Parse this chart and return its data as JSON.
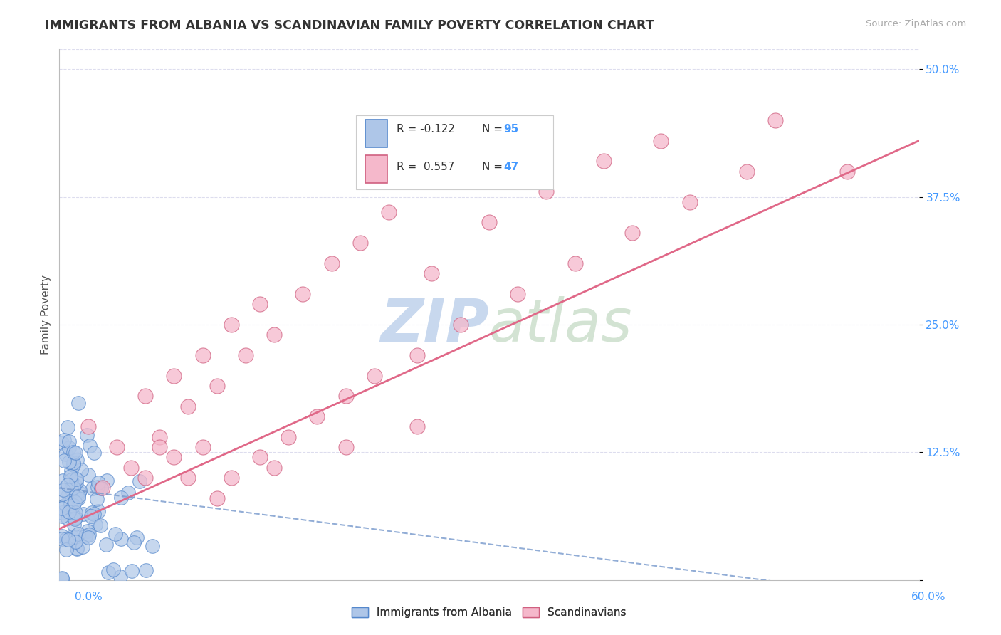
{
  "title": "IMMIGRANTS FROM ALBANIA VS SCANDINAVIAN FAMILY POVERTY CORRELATION CHART",
  "source": "Source: ZipAtlas.com",
  "ylabel": "Family Poverty",
  "legend_bottom1": "Immigrants from Albania",
  "legend_bottom2": "Scandinavians",
  "r_albania": -0.122,
  "n_albania": 95,
  "r_scandinavian": 0.557,
  "n_scandinavian": 47,
  "blue_color": "#aec6e8",
  "blue_edge": "#5588cc",
  "pink_color": "#f5b8cb",
  "pink_edge": "#d06080",
  "blue_line_color": "#7799cc",
  "pink_line_color": "#e06888",
  "title_color": "#333333",
  "source_color": "#aaaaaa",
  "axis_label_color": "#4499ff",
  "watermark_color": "#c8d8ee",
  "background_color": "#ffffff",
  "grid_color": "#ddddee",
  "xmin": 0.0,
  "xmax": 0.6,
  "ymin": 0.0,
  "ymax": 0.52,
  "yticks": [
    0.0,
    0.125,
    0.25,
    0.375,
    0.5
  ],
  "ytick_labels": [
    "",
    "12.5%",
    "25.0%",
    "37.5%",
    "50.0%"
  ],
  "scand_x": [
    0.02,
    0.04,
    0.06,
    0.07,
    0.08,
    0.09,
    0.1,
    0.11,
    0.12,
    0.13,
    0.14,
    0.15,
    0.17,
    0.19,
    0.21,
    0.23,
    0.26,
    0.3,
    0.34,
    0.38,
    0.42,
    0.5,
    0.55,
    0.06,
    0.08,
    0.1,
    0.12,
    0.14,
    0.16,
    0.18,
    0.2,
    0.22,
    0.25,
    0.28,
    0.32,
    0.36,
    0.4,
    0.44,
    0.48,
    0.03,
    0.05,
    0.07,
    0.09,
    0.11,
    0.15,
    0.2,
    0.25
  ],
  "scand_y": [
    0.15,
    0.13,
    0.18,
    0.14,
    0.2,
    0.17,
    0.22,
    0.19,
    0.25,
    0.22,
    0.27,
    0.24,
    0.28,
    0.31,
    0.33,
    0.36,
    0.3,
    0.35,
    0.38,
    0.41,
    0.43,
    0.45,
    0.4,
    0.1,
    0.12,
    0.13,
    0.1,
    0.12,
    0.14,
    0.16,
    0.18,
    0.2,
    0.22,
    0.25,
    0.28,
    0.31,
    0.34,
    0.37,
    0.4,
    0.09,
    0.11,
    0.13,
    0.1,
    0.08,
    0.11,
    0.13,
    0.15
  ]
}
